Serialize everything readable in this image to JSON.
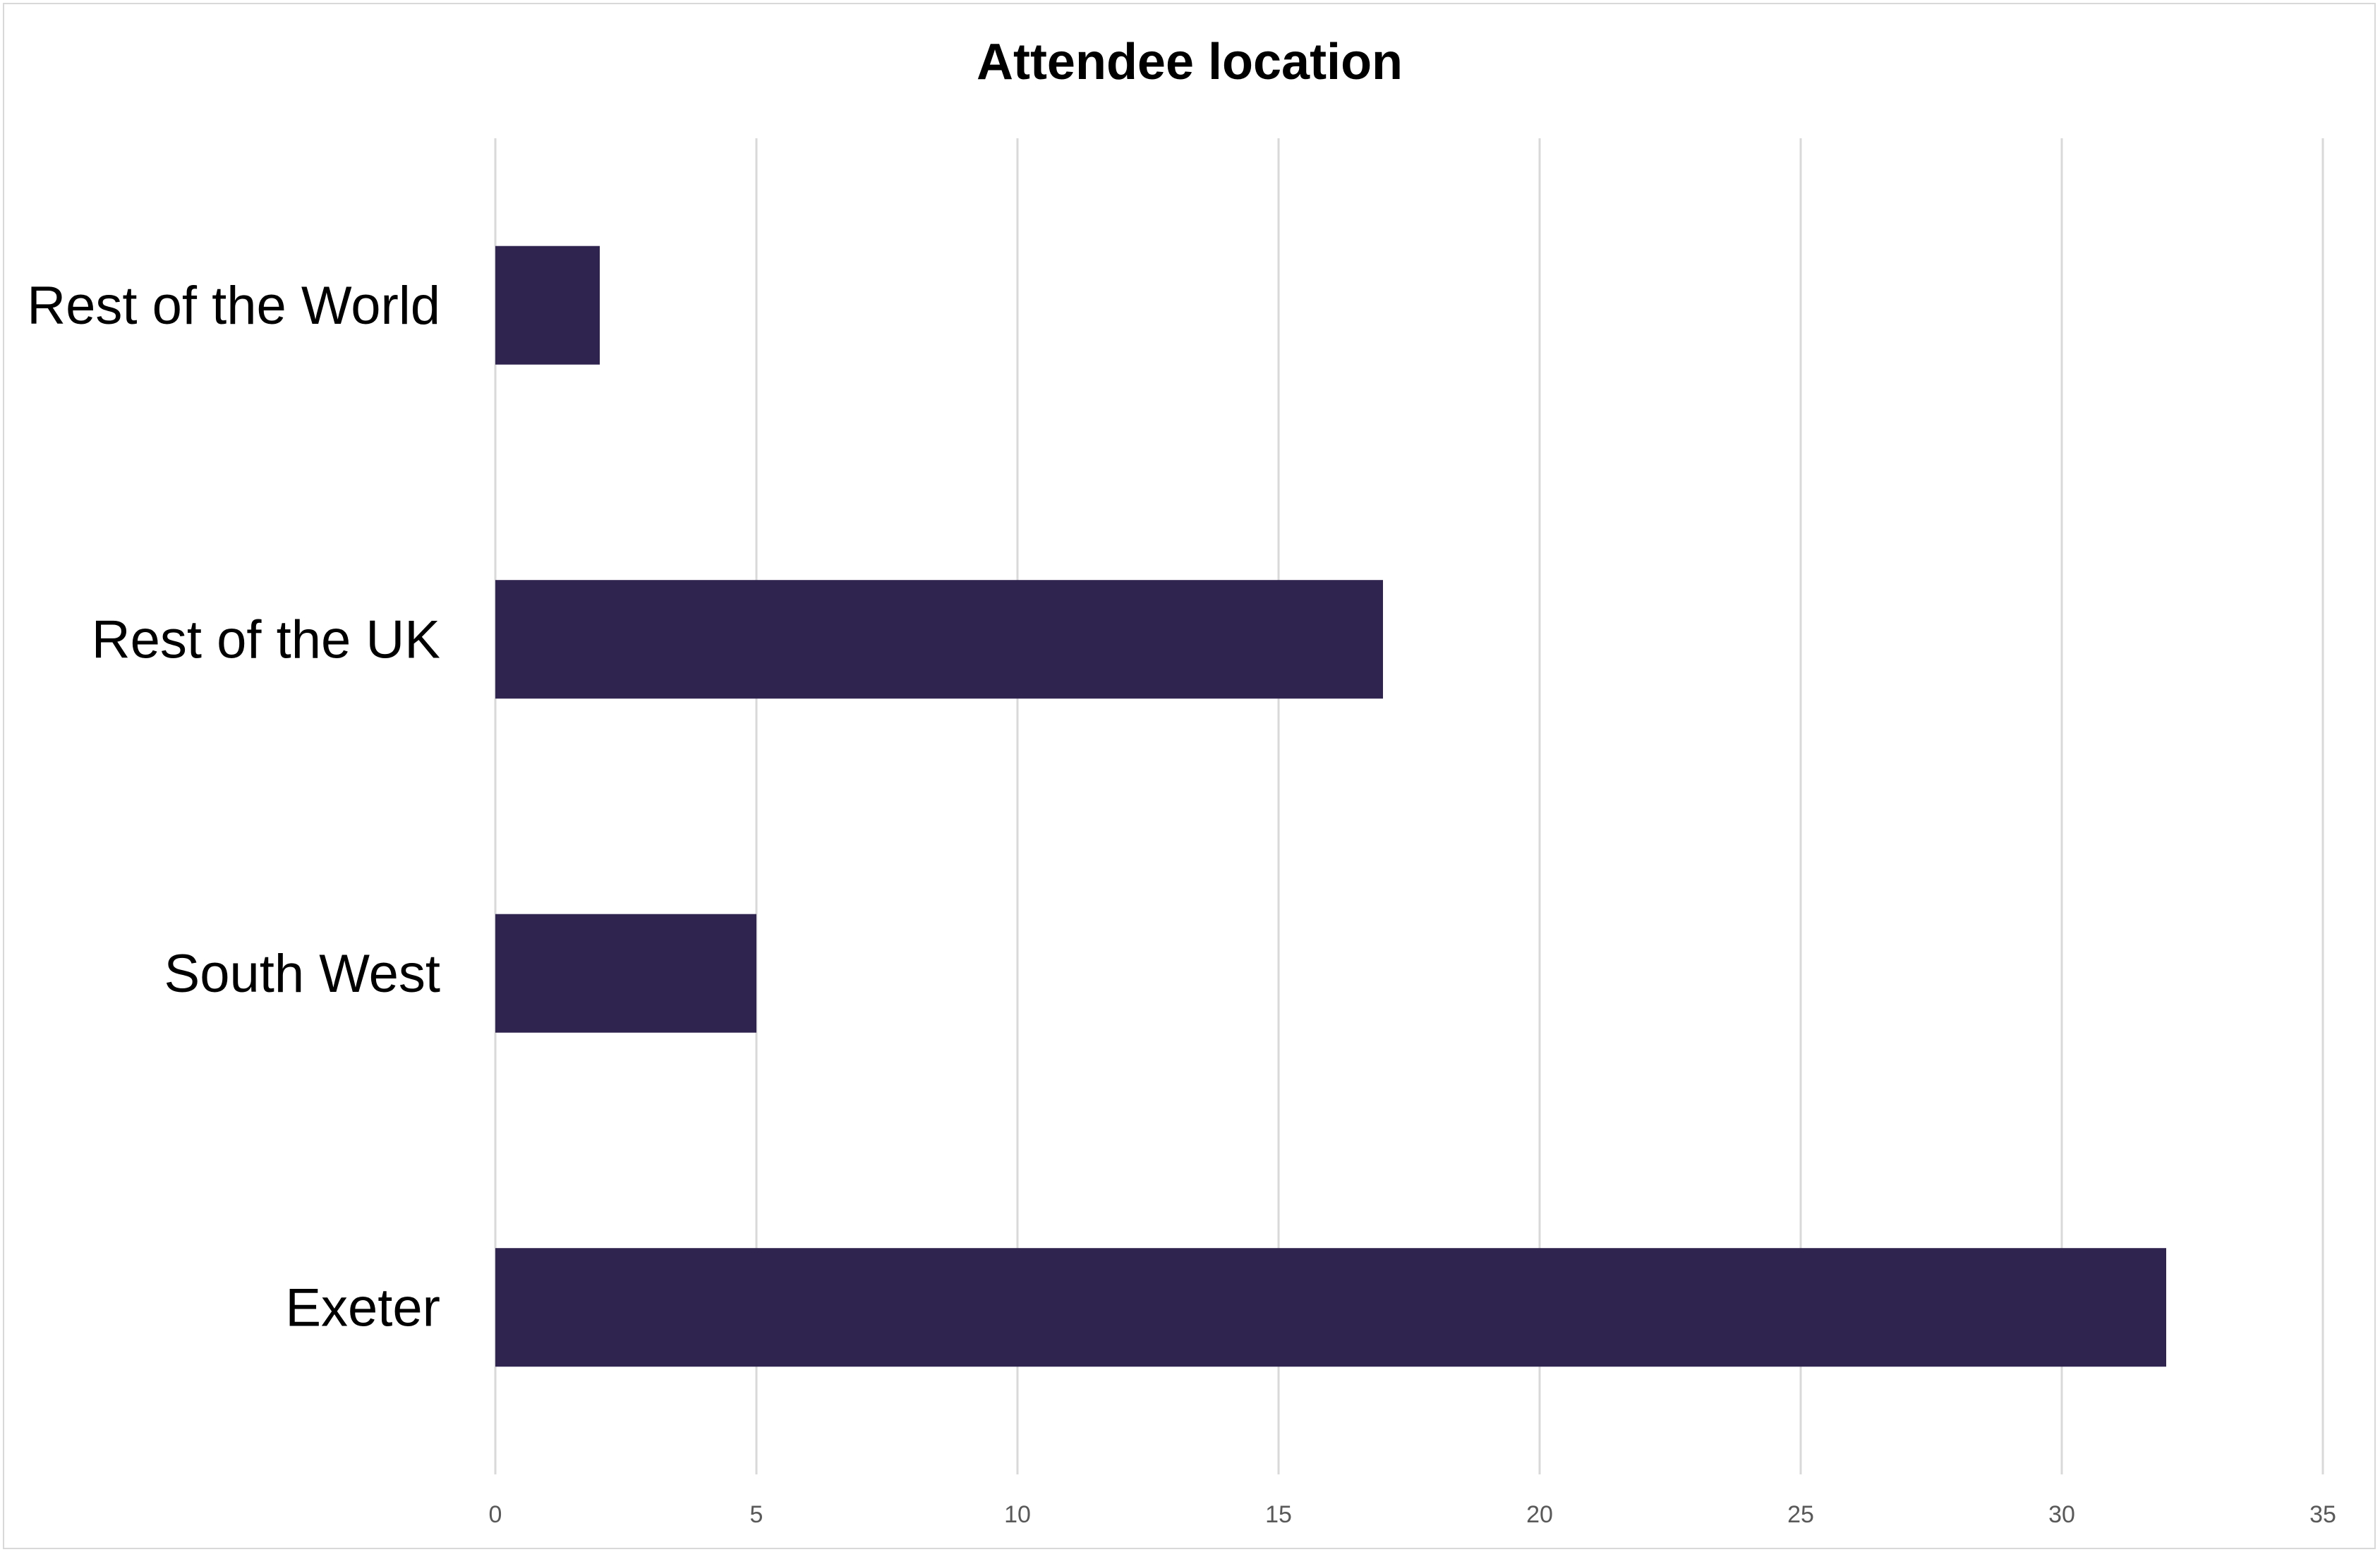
{
  "chart_data": {
    "type": "bar",
    "orientation": "horizontal",
    "title": "Attendee location",
    "categories": [
      "Rest of the World",
      "Rest of the UK",
      "South West",
      "Exeter"
    ],
    "values": [
      2,
      17,
      5,
      32
    ],
    "xlim": [
      0,
      35
    ],
    "x_ticks": [
      0,
      5,
      10,
      15,
      20,
      25,
      30,
      35
    ],
    "xlabel": "",
    "ylabel": "",
    "grid": "vertical",
    "legend": "none",
    "bar_color": "#2f2350"
  }
}
